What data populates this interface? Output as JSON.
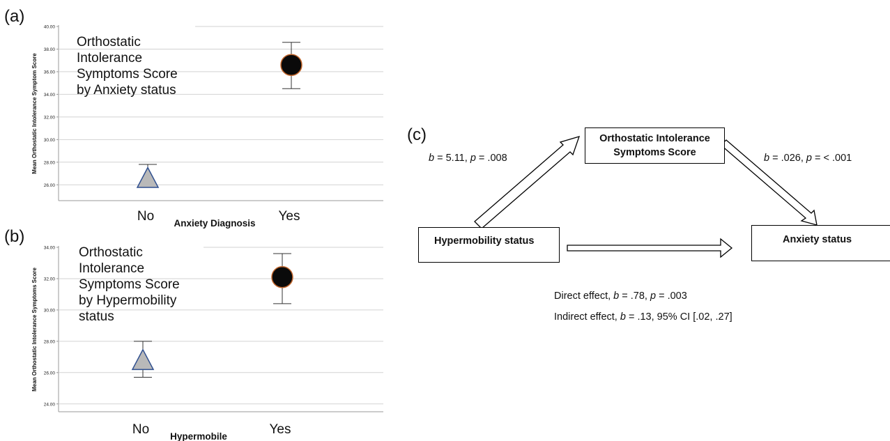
{
  "panels": {
    "a": {
      "label": "(a)"
    },
    "b": {
      "label": "(b)"
    },
    "c": {
      "label": "(c)"
    }
  },
  "chart_data": [
    {
      "type": "scatter",
      "panel": "a",
      "title_lines": [
        "Orthostatic",
        "Intolerance",
        "Symptoms Score",
        "by Anxiety status"
      ],
      "xlabel": "Anxiety Diagnosis",
      "ylabel": "Mean Orthostatic Intolerance Symptom Score",
      "categories": [
        "No",
        "Yes"
      ],
      "yticks": [
        "26.00",
        "28.00",
        "30.00",
        "32.00",
        "34.00",
        "36.00",
        "38.00",
        "40.00"
      ],
      "ylim": [
        24.6,
        40.0
      ],
      "grid": true,
      "points": [
        {
          "category": "No",
          "mean": 26.6,
          "ci_low": 25.8,
          "ci_high": 27.8,
          "marker": "triangle",
          "fill": "#b9b9b9",
          "stroke": "#2f4f8f"
        },
        {
          "category": "Yes",
          "mean": 36.6,
          "ci_low": 34.5,
          "ci_high": 38.6,
          "marker": "circle",
          "fill": "#0a0a0a",
          "stroke": "#c0642a"
        }
      ]
    },
    {
      "type": "scatter",
      "panel": "b",
      "title_lines": [
        "Orthostatic",
        "Intolerance",
        "Symptoms Score",
        "by Hypermobility",
        "status"
      ],
      "xlabel": "Hypermobile",
      "ylabel": "Mean Orthostatic Intolerance Symptoms Score",
      "categories": [
        "No",
        "Yes"
      ],
      "yticks": [
        "24.00",
        "26.00",
        "28.00",
        "30.00",
        "32.00",
        "34.00"
      ],
      "ylim": [
        23.5,
        34.0
      ],
      "grid": true,
      "points": [
        {
          "category": "No",
          "mean": 26.8,
          "ci_low": 25.7,
          "ci_high": 28.0,
          "marker": "triangle",
          "fill": "#b9b9b9",
          "stroke": "#2f4f8f"
        },
        {
          "category": "Yes",
          "mean": 32.1,
          "ci_low": 30.4,
          "ci_high": 33.6,
          "marker": "circle",
          "fill": "#0a0a0a",
          "stroke": "#c0642a"
        }
      ]
    }
  ],
  "diagram": {
    "nodes": {
      "mediator": {
        "line1": "Orthostatic Intolerance",
        "line2": "Symptoms Score"
      },
      "predictor": "Hypermobility status",
      "outcome": "Anxiety status"
    },
    "path_a": {
      "b": "b",
      "rest": " = 5.11, ",
      "p": "p",
      "val": " = .008"
    },
    "path_b": {
      "b": "b",
      "rest": " = .026, ",
      "p": "p",
      "val": " = < .001"
    },
    "direct": {
      "pre": "Direct effect, ",
      "b": "b",
      "rest": " = .78, ",
      "p": "p",
      "val": " = .003"
    },
    "indirect": {
      "pre": "Indirect effect, ",
      "b": "b",
      "val": " = .13, 95% CI [.02, .27]"
    }
  }
}
